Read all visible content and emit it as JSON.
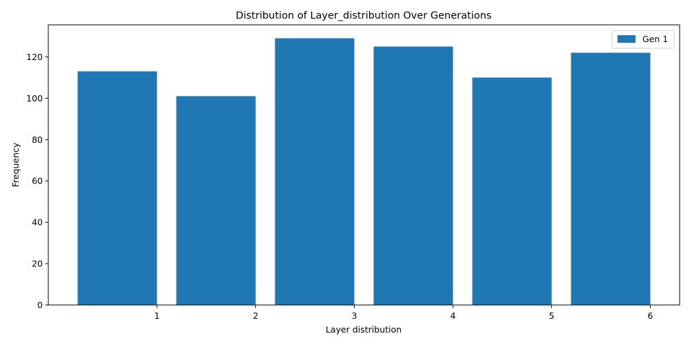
{
  "chart_data": {
    "type": "bar",
    "title": "Distribution of Layer_distribution Over Generations",
    "xlabel": "Layer distribution",
    "ylabel": "Frequency",
    "x": [
      1,
      2,
      3,
      4,
      5,
      6
    ],
    "series": [
      {
        "name": "Gen 1",
        "color": "#1f77b4",
        "values": [
          113,
          101,
          129,
          125,
          110,
          122
        ]
      }
    ],
    "xticks": [
      "1",
      "2",
      "3",
      "4",
      "5",
      "6"
    ],
    "yticks": [
      "0",
      "20",
      "40",
      "60",
      "80",
      "100",
      "120"
    ],
    "ylim": [
      0,
      135
    ],
    "grid": false,
    "legend_position": "top-right"
  }
}
